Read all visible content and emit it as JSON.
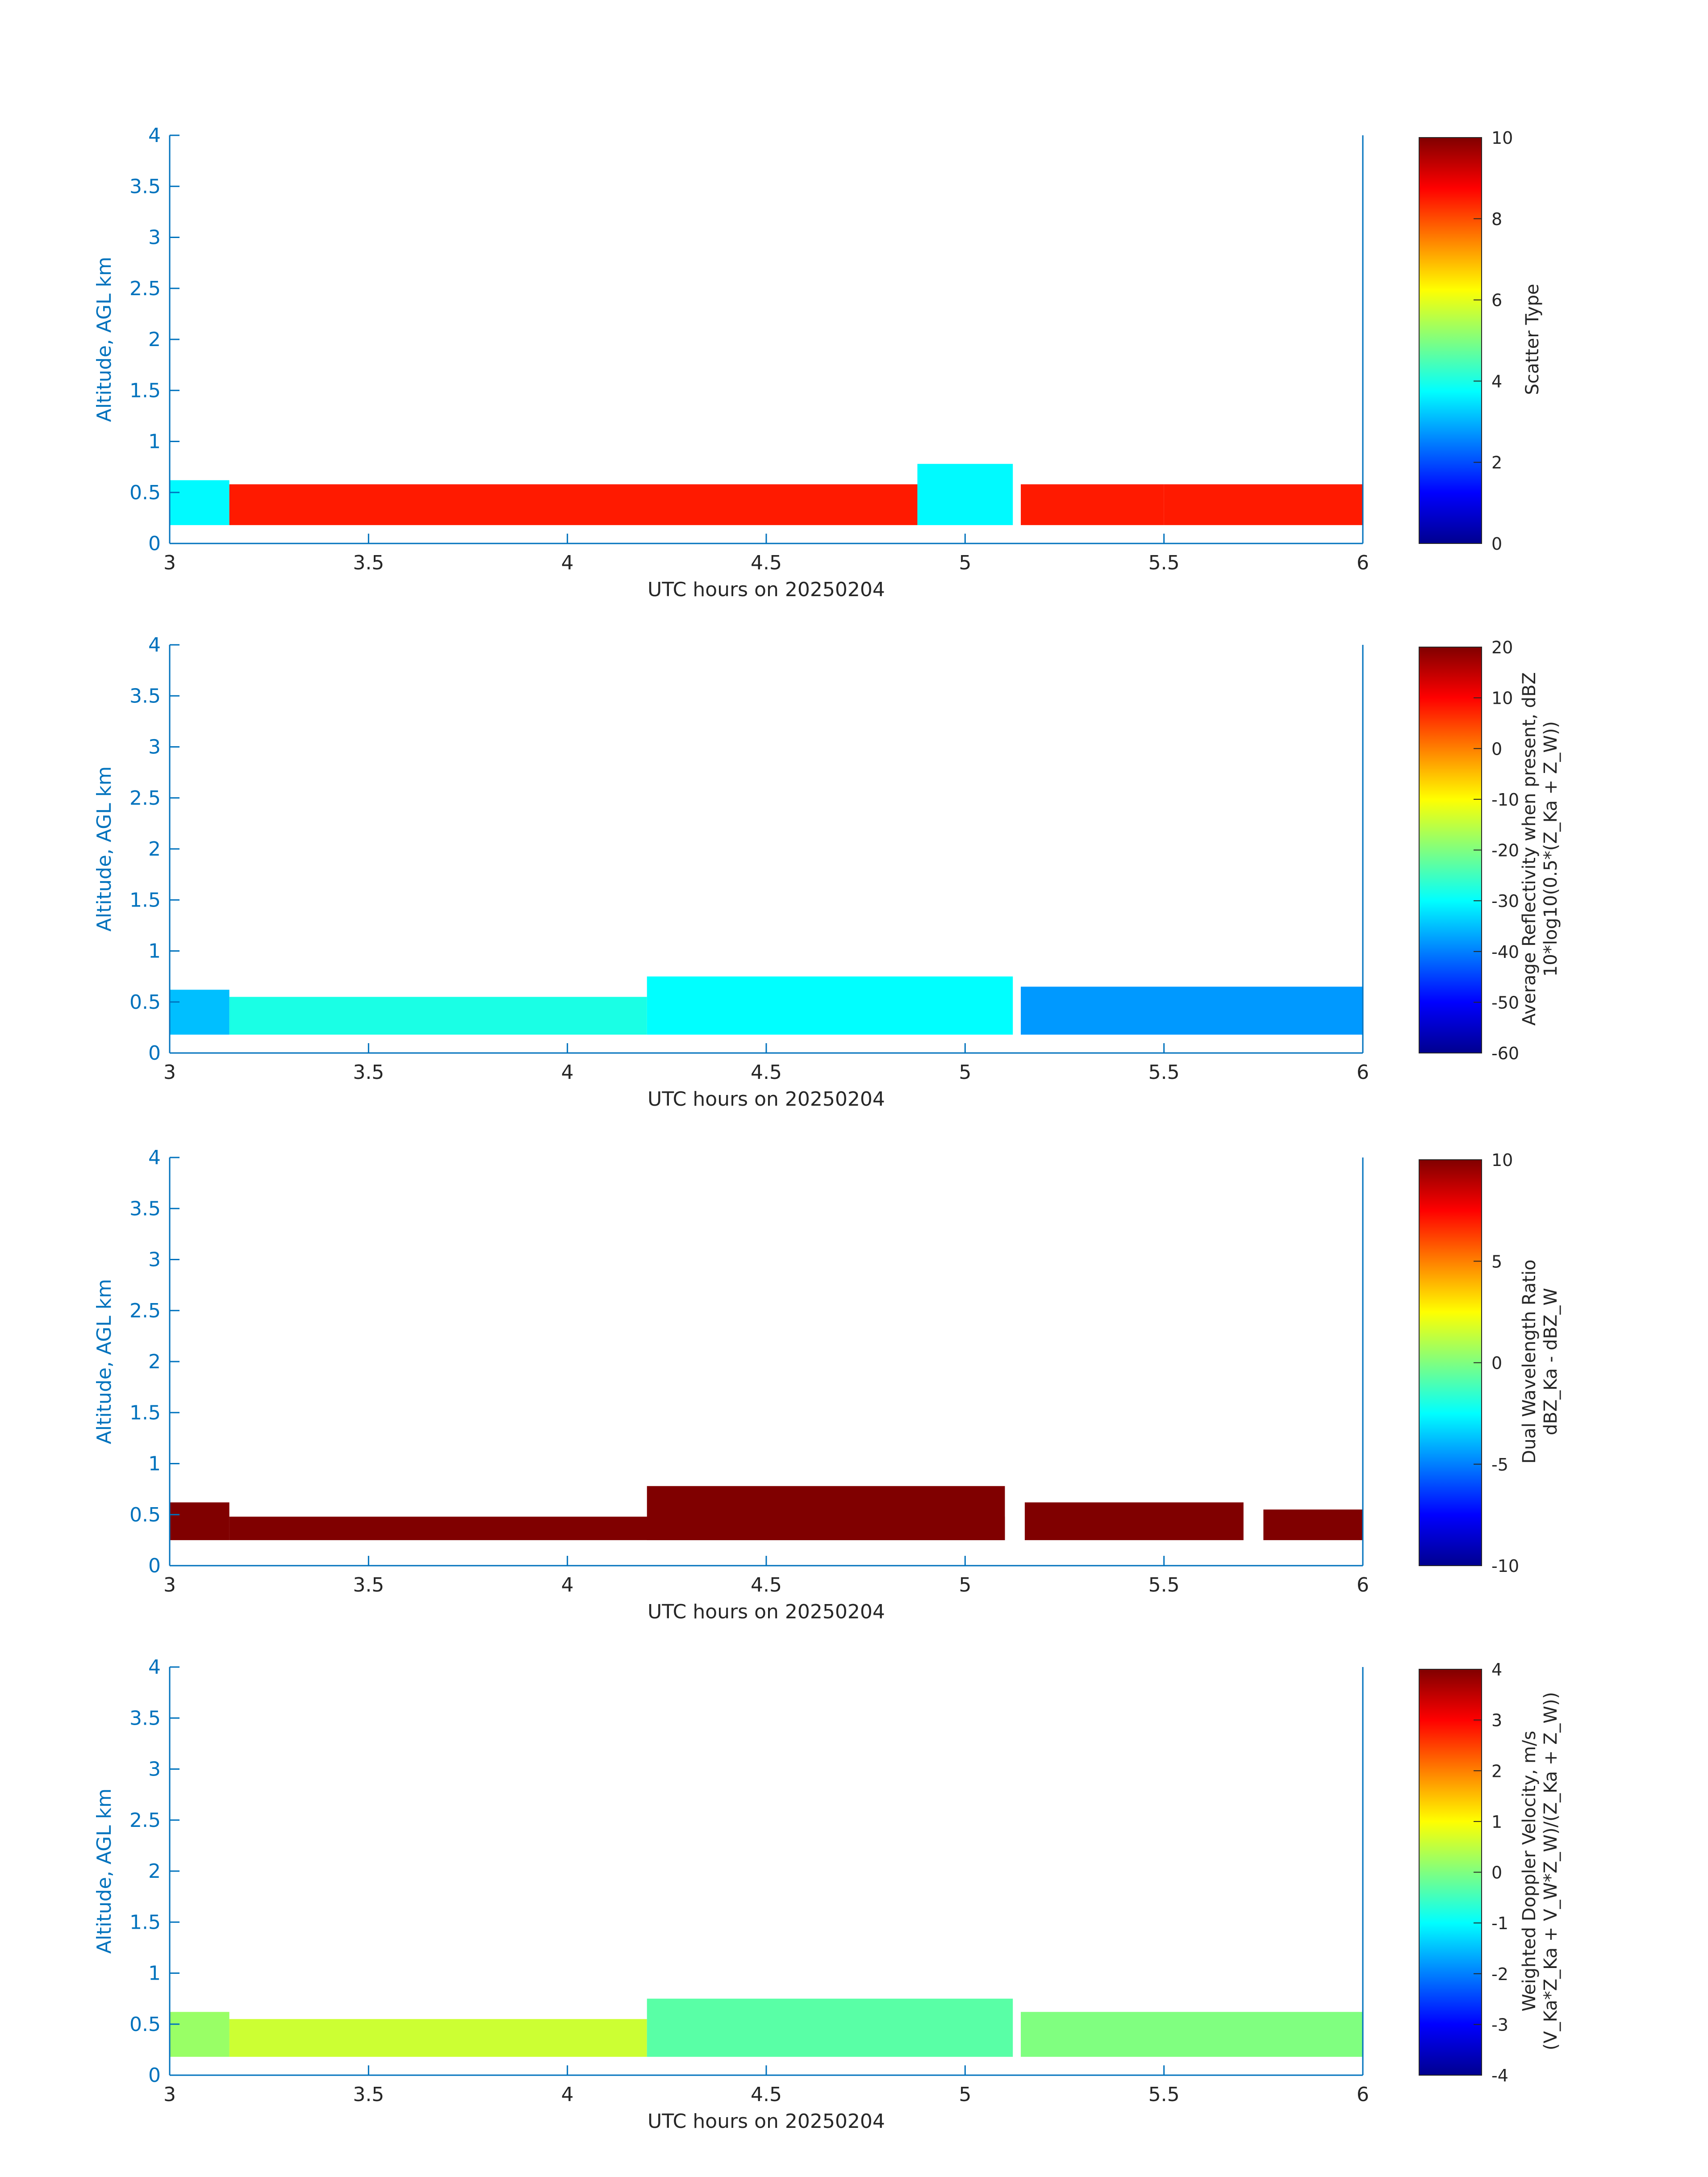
{
  "figure": {
    "xlabel": "UTC hours on 20250204",
    "ylabel": "Altitude, AGL km",
    "xticks": [
      "3",
      "3.5",
      "4",
      "4.5",
      "5",
      "5.5",
      "6"
    ],
    "yticks": [
      "0",
      "0.5",
      "1",
      "1.5",
      "2",
      "2.5",
      "3",
      "3.5",
      "4"
    ],
    "axis_color": "#0072BD"
  },
  "chart_data": [
    {
      "type": "heatmap",
      "title": "",
      "xlabel": "UTC hours on 20250204",
      "ylabel": "Altitude, AGL km",
      "xlim": [
        3,
        6
      ],
      "ylim": [
        0,
        4
      ],
      "colorbar": {
        "label_lines": [
          "Scatter Type"
        ],
        "range": [
          0,
          10
        ],
        "ticks": [
          "10",
          "8",
          "6",
          "4",
          "2",
          "0"
        ],
        "colormap": "jet"
      },
      "regions": [
        {
          "x": [
            3.0,
            3.15
          ],
          "y": [
            0.18,
            0.62
          ],
          "value": 3.7
        },
        {
          "x": [
            3.15,
            4.88
          ],
          "y": [
            0.18,
            0.58
          ],
          "value": 8.5
        },
        {
          "x": [
            4.88,
            5.12
          ],
          "y": [
            0.18,
            0.78
          ],
          "value": 3.7
        },
        {
          "x": [
            5.14,
            5.5
          ],
          "y": [
            0.18,
            0.58
          ],
          "value": 8.5
        },
        {
          "x": [
            5.5,
            6.0
          ],
          "y": [
            0.18,
            0.58
          ],
          "value": 8.5
        }
      ]
    },
    {
      "type": "heatmap",
      "title": "",
      "xlabel": "UTC hours on 20250204",
      "ylabel": "Altitude, AGL km",
      "xlim": [
        3,
        6
      ],
      "ylim": [
        0,
        4
      ],
      "colorbar": {
        "label_lines": [
          "Average Reflectivity when present, dBZ",
          "10*log10(0.5*(Z_Ka + Z_W))"
        ],
        "range": [
          -60,
          20
        ],
        "ticks": [
          "20",
          "10",
          "0",
          "-10",
          "-20",
          "-30",
          "-40",
          "-50",
          "-60"
        ],
        "colormap": "jet"
      },
      "regions": [
        {
          "x": [
            3.0,
            3.15
          ],
          "y": [
            0.18,
            0.62
          ],
          "value": -35
        },
        {
          "x": [
            3.15,
            4.2
          ],
          "y": [
            0.18,
            0.55
          ],
          "value": -28
        },
        {
          "x": [
            4.2,
            5.12
          ],
          "y": [
            0.18,
            0.75
          ],
          "value": -30
        },
        {
          "x": [
            5.14,
            6.0
          ],
          "y": [
            0.18,
            0.65
          ],
          "value": -38
        }
      ]
    },
    {
      "type": "heatmap",
      "title": "",
      "xlabel": "UTC hours on 20250204",
      "ylabel": "Altitude, AGL km",
      "xlim": [
        3,
        6
      ],
      "ylim": [
        0,
        4
      ],
      "colorbar": {
        "label_lines": [
          "Dual Wavelength Ratio",
          "dBZ_Ka - dBZ_W"
        ],
        "range": [
          -10,
          10
        ],
        "ticks": [
          "10",
          "5",
          "0",
          "-5",
          "-10"
        ],
        "colormap": "jet"
      },
      "regions": [
        {
          "x": [
            3.0,
            3.15
          ],
          "y": [
            0.25,
            0.62
          ],
          "value": 10
        },
        {
          "x": [
            3.15,
            5.1
          ],
          "y": [
            0.25,
            0.48
          ],
          "value": 10
        },
        {
          "x": [
            4.2,
            5.1
          ],
          "y": [
            0.25,
            0.78
          ],
          "value": 10
        },
        {
          "x": [
            5.15,
            5.7
          ],
          "y": [
            0.25,
            0.62
          ],
          "value": 10
        },
        {
          "x": [
            5.75,
            6.0
          ],
          "y": [
            0.25,
            0.55
          ],
          "value": 10
        }
      ]
    },
    {
      "type": "heatmap",
      "title": "",
      "xlabel": "UTC hours on 20250204",
      "ylabel": "Altitude, AGL km",
      "xlim": [
        3,
        6
      ],
      "ylim": [
        0,
        4
      ],
      "colorbar": {
        "label_lines": [
          "Weighted Doppler Velocity, m/s",
          "(V_Ka*Z_Ka + V_W*Z_W)/(Z_Ka + Z_W))"
        ],
        "range": [
          -4,
          4
        ],
        "ticks": [
          "4",
          "3",
          "2",
          "1",
          "0",
          "-1",
          "-2",
          "-3",
          "-4"
        ],
        "colormap": "jet"
      },
      "regions": [
        {
          "x": [
            3.0,
            3.15
          ],
          "y": [
            0.18,
            0.62
          ],
          "value": 0.2
        },
        {
          "x": [
            3.15,
            4.2
          ],
          "y": [
            0.18,
            0.55
          ],
          "value": 0.6
        },
        {
          "x": [
            4.2,
            5.12
          ],
          "y": [
            0.18,
            0.75
          ],
          "value": -0.3
        },
        {
          "x": [
            5.14,
            6.0
          ],
          "y": [
            0.18,
            0.62
          ],
          "value": 0.0
        }
      ]
    }
  ]
}
